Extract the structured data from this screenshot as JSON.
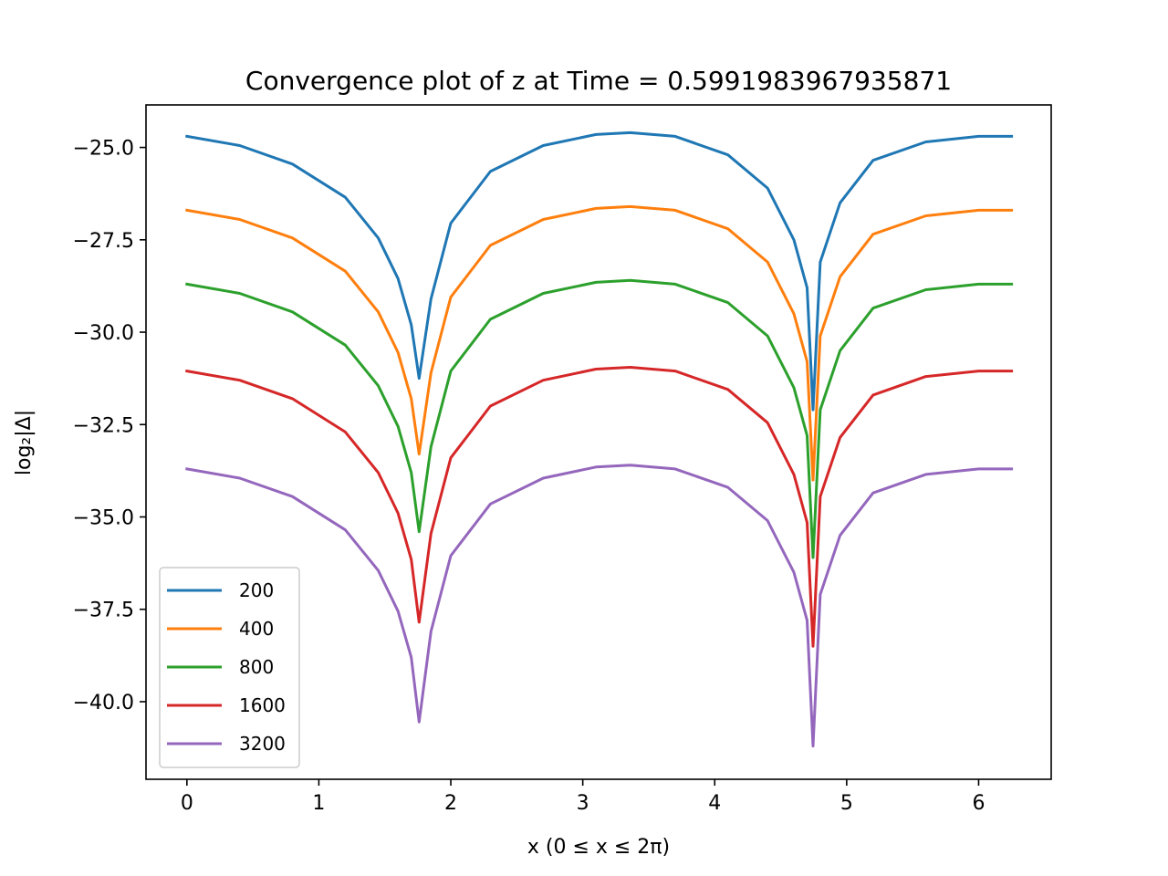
{
  "chart_data": {
    "type": "line",
    "title": "Convergence plot of z at Time = 0.5991983967935871",
    "xlabel": "x (0 ≤ x ≤ 2π)",
    "ylabel": "log₂|Δ|",
    "xlim": [
      -0.31,
      6.55
    ],
    "ylim": [
      -42.1,
      -23.85
    ],
    "xticks": [
      0,
      1,
      2,
      3,
      4,
      5,
      6
    ],
    "xtick_labels": [
      "0",
      "1",
      "2",
      "3",
      "4",
      "5",
      "6"
    ],
    "yticks": [
      -25.0,
      -27.5,
      -30.0,
      -32.5,
      -35.0,
      -37.5,
      -40.0
    ],
    "ytick_labels": [
      "−25.0",
      "−27.5",
      "−30.0",
      "−32.5",
      "−35.0",
      "−37.5",
      "−40.0"
    ],
    "grid": false,
    "legend_position": "lower-left",
    "x": [
      0,
      0.4,
      0.8,
      1.2,
      1.45,
      1.6,
      1.7,
      1.76,
      1.85,
      2.0,
      2.3,
      2.7,
      3.1,
      3.36,
      3.7,
      4.1,
      4.4,
      4.6,
      4.7,
      4.745,
      4.8,
      4.95,
      5.2,
      5.6,
      6.0,
      6.25
    ],
    "series": [
      {
        "name": "200",
        "color": "#1f77b4",
        "values": [
          -24.7,
          -24.95,
          -25.45,
          -26.35,
          -27.45,
          -28.55,
          -29.8,
          -31.25,
          -29.1,
          -27.05,
          -25.65,
          -24.95,
          -24.65,
          -24.6,
          -24.7,
          -25.2,
          -26.1,
          -27.5,
          -28.8,
          -32.1,
          -28.1,
          -26.5,
          -25.35,
          -24.85,
          -24.7,
          -24.7
        ]
      },
      {
        "name": "400",
        "color": "#ff7f0e",
        "values": [
          -26.7,
          -26.95,
          -27.45,
          -28.35,
          -29.45,
          -30.55,
          -31.8,
          -33.3,
          -31.1,
          -29.05,
          -27.65,
          -26.95,
          -26.65,
          -26.6,
          -26.7,
          -27.2,
          -28.1,
          -29.5,
          -30.8,
          -34.0,
          -30.1,
          -28.5,
          -27.35,
          -26.85,
          -26.7,
          -26.7
        ]
      },
      {
        "name": "800",
        "color": "#2ca02c",
        "values": [
          -28.7,
          -28.95,
          -29.45,
          -30.35,
          -31.45,
          -32.55,
          -33.8,
          -35.4,
          -33.1,
          -31.05,
          -29.65,
          -28.95,
          -28.65,
          -28.6,
          -28.7,
          -29.2,
          -30.1,
          -31.5,
          -32.8,
          -36.1,
          -32.1,
          -30.5,
          -29.35,
          -28.85,
          -28.7,
          -28.7
        ]
      },
      {
        "name": "1600",
        "color": "#d62728",
        "values": [
          -31.05,
          -31.3,
          -31.8,
          -32.7,
          -33.8,
          -34.9,
          -36.15,
          -37.85,
          -35.45,
          -33.4,
          -32.0,
          -31.3,
          -31.0,
          -30.95,
          -31.05,
          -31.55,
          -32.45,
          -33.85,
          -35.15,
          -38.5,
          -34.45,
          -32.85,
          -31.7,
          -31.2,
          -31.05,
          -31.05
        ]
      },
      {
        "name": "3200",
        "color": "#9467bd",
        "values": [
          -33.7,
          -33.95,
          -34.45,
          -35.35,
          -36.45,
          -37.55,
          -38.8,
          -40.55,
          -38.1,
          -36.05,
          -34.65,
          -33.95,
          -33.65,
          -33.6,
          -33.7,
          -34.2,
          -35.1,
          -36.5,
          -37.8,
          -41.2,
          -37.1,
          -35.5,
          -34.35,
          -33.85,
          -33.7,
          -33.7
        ]
      }
    ]
  }
}
